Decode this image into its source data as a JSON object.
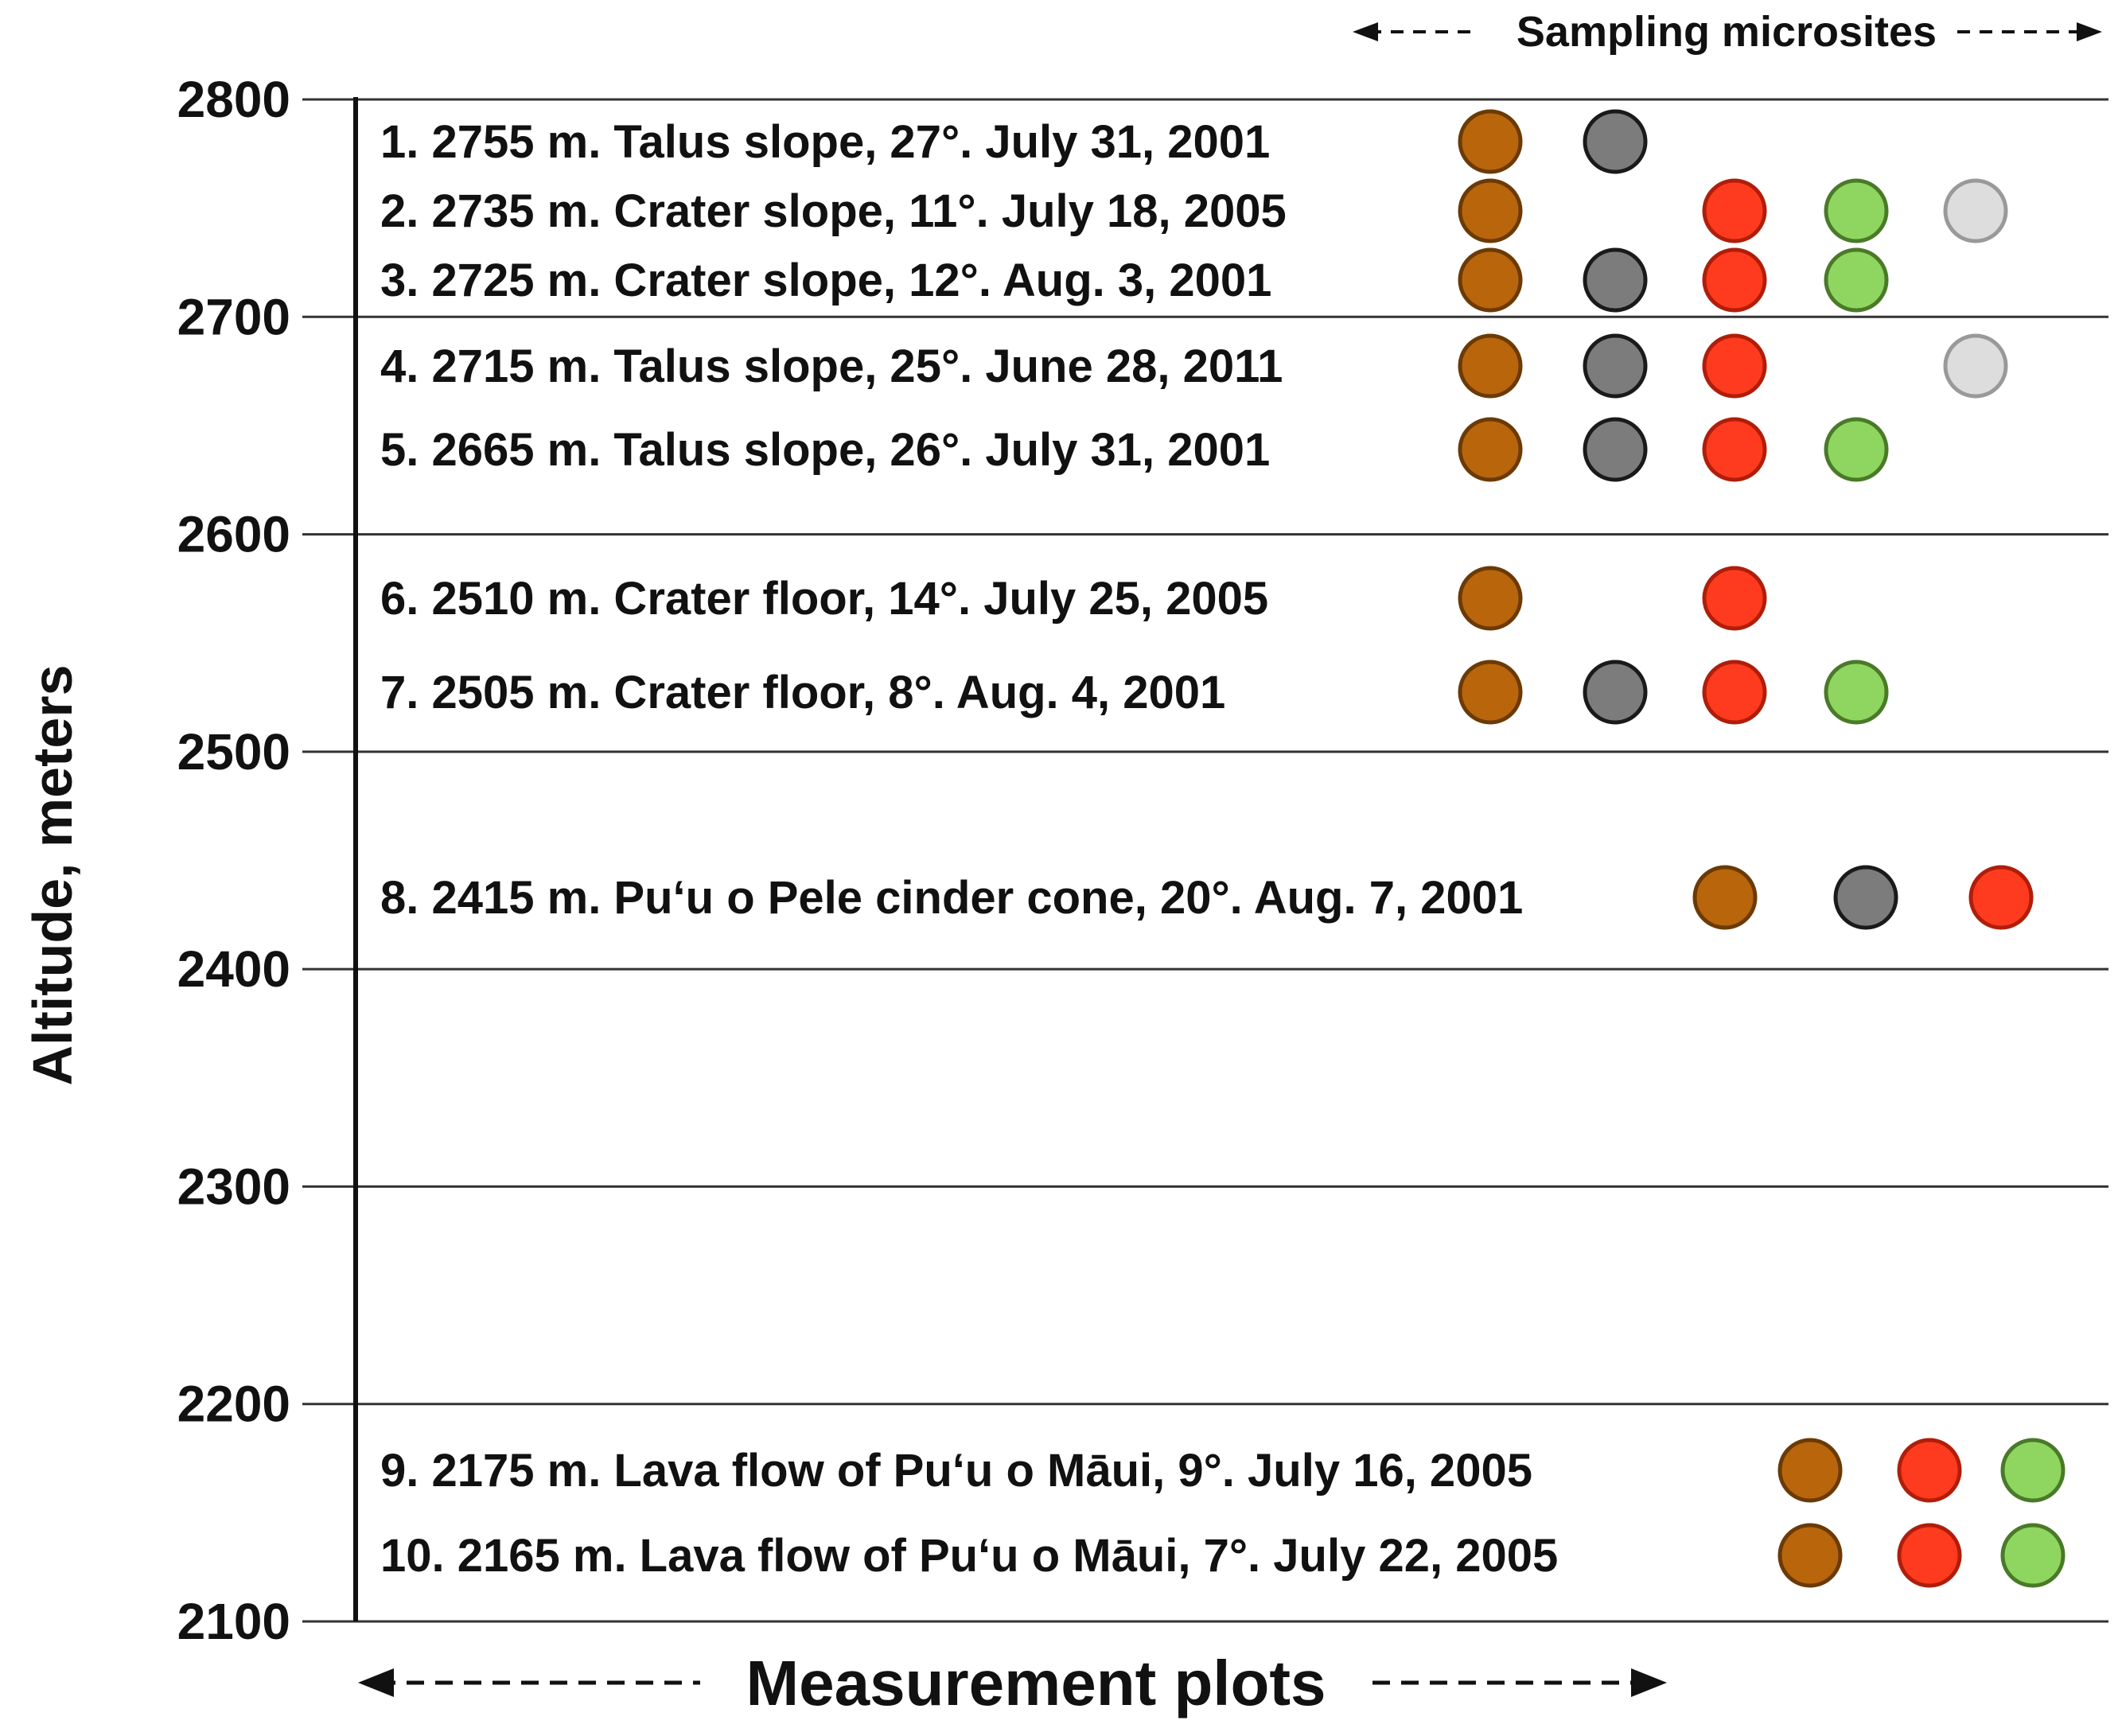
{
  "chart_data": {
    "type": "scatter",
    "title": "",
    "ylabel": "Altitude, meters",
    "xlabel": "Measurement plots",
    "top_label": "Sampling microsites",
    "ylim": [
      2100,
      2800
    ],
    "yticks": [
      2800,
      2700,
      2600,
      2500,
      2400,
      2300,
      2200,
      2100
    ],
    "grid": true,
    "microsite_colors": [
      "#b8650c",
      "#7c7c7c",
      "#ff3b1f",
      "#8fd660",
      "#dddddd"
    ],
    "microsite_stroke_colors": [
      "#6b3a05",
      "#1a1a1a",
      "#b01e0a",
      "#4a7a28",
      "#999999"
    ],
    "plots": [
      {
        "label": "1. 2755 m. Talus slope, 27°. July 31, 2001",
        "altitude": 2755,
        "microsites": [
          1,
          2
        ],
        "label_col": 0,
        "dot_col": 0
      },
      {
        "label": "2. 2735 m. Crater slope, 11°. July 18, 2005",
        "altitude": 2735,
        "microsites": [
          1,
          3,
          4,
          5
        ],
        "label_col": 0,
        "dot_col": 0
      },
      {
        "label": "3. 2725 m. Crater slope, 12°. Aug. 3, 2001",
        "altitude": 2725,
        "microsites": [
          1,
          2,
          3,
          4
        ],
        "label_col": 0,
        "dot_col": 0
      },
      {
        "label": "4. 2715 m. Talus slope, 25°. June 28, 2011",
        "altitude": 2715,
        "microsites": [
          1,
          2,
          3,
          5
        ],
        "label_col": 0,
        "dot_col": 0
      },
      {
        "label": "5. 2665 m. Talus slope, 26°. July 31, 2001",
        "altitude": 2665,
        "microsites": [
          1,
          2,
          3,
          4
        ],
        "label_col": 0,
        "dot_col": 0
      },
      {
        "label": "6. 2510 m. Crater floor, 14°. July 25, 2005",
        "altitude": 2510,
        "microsites": [
          1,
          3
        ],
        "label_col": 0,
        "dot_col": 0
      },
      {
        "label": "7. 2505 m. Crater floor, 8°. Aug. 4, 2001",
        "altitude": 2505,
        "microsites": [
          1,
          2,
          3,
          4
        ],
        "label_col": 0,
        "dot_col": 0
      },
      {
        "label": "8. 2415 m. Pu‘u o Pele cinder cone, 20°. Aug. 7, 2001",
        "altitude": 2415,
        "microsites": [
          1,
          2,
          3
        ],
        "label_col": 0,
        "dot_col": 1
      },
      {
        "label": "9.   2175 m. Lava flow of Pu‘u o Māui, 9°. July 16, 2005",
        "altitude": 2175,
        "microsites": [
          1,
          3,
          4
        ],
        "label_col": 0,
        "dot_col": 2
      },
      {
        "label": "10. 2165 m. Lava flow of Pu‘u o Māui, 7°. July 22, 2005",
        "altitude": 2165,
        "microsites": [
          1,
          3,
          4
        ],
        "label_col": 0,
        "dot_col": 2
      }
    ]
  }
}
